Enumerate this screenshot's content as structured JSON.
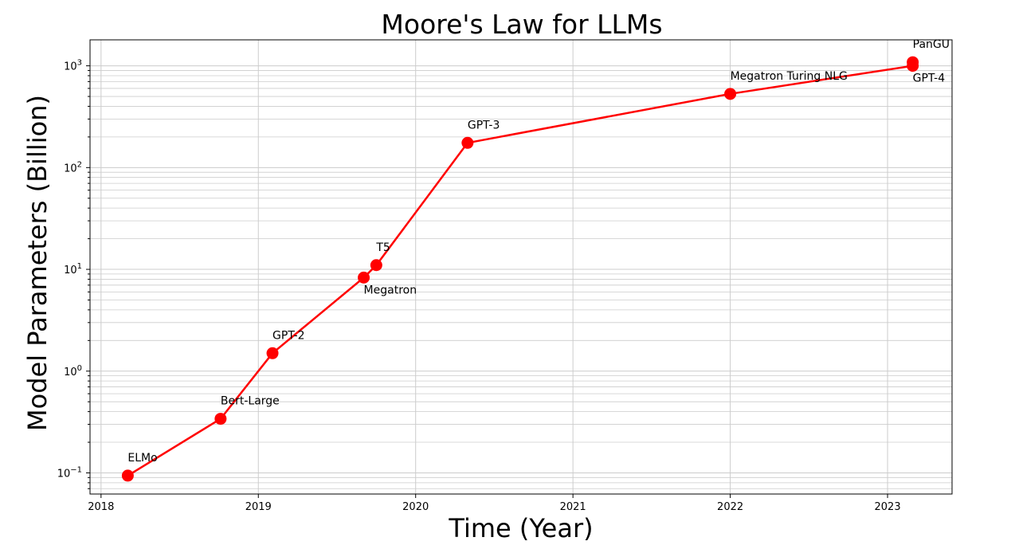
{
  "chart_data": {
    "type": "line",
    "title": "Moore's Law for LLMs",
    "xlabel": "Time (Year)",
    "ylabel": "Model Parameters (Billion)",
    "y_scale": "log",
    "xlim": [
      2017.93,
      2023.41
    ],
    "ylim": [
      0.062,
      1800
    ],
    "x_ticks": [
      2018,
      2019,
      2020,
      2021,
      2022,
      2023
    ],
    "x_tick_labels": [
      "2018",
      "2019",
      "2020",
      "2021",
      "2022",
      "2023"
    ],
    "y_ticks": [
      0.1,
      1,
      10,
      100,
      1000
    ],
    "y_tick_labels": [
      {
        "base": "10",
        "exp": "−1"
      },
      {
        "base": "10",
        "exp": "0"
      },
      {
        "base": "10",
        "exp": "1"
      },
      {
        "base": "10",
        "exp": "2"
      },
      {
        "base": "10",
        "exp": "3"
      }
    ],
    "grid": true,
    "line_color": "#ff0000",
    "marker_color": "#ff0000",
    "points": [
      {
        "label": "ELMo",
        "x": 2018.17,
        "y": 0.094,
        "label_pos": "above"
      },
      {
        "label": "Bert-Large",
        "x": 2018.76,
        "y": 0.34,
        "label_pos": "above"
      },
      {
        "label": "GPT-2",
        "x": 2019.09,
        "y": 1.5,
        "label_pos": "above"
      },
      {
        "label": "Megatron",
        "x": 2019.67,
        "y": 8.3,
        "label_pos": "below"
      },
      {
        "label": "T5",
        "x": 2019.75,
        "y": 11,
        "label_pos": "above"
      },
      {
        "label": "GPT-3",
        "x": 2020.33,
        "y": 175,
        "label_pos": "above"
      },
      {
        "label": "Megatron Turing NLG",
        "x": 2022.0,
        "y": 530,
        "label_pos": "above"
      },
      {
        "label": "GPT-4",
        "x": 2023.16,
        "y": 1000,
        "label_pos": "below"
      },
      {
        "label": "PanGU",
        "x": 2023.16,
        "y": 1085,
        "label_pos": "above"
      }
    ]
  }
}
